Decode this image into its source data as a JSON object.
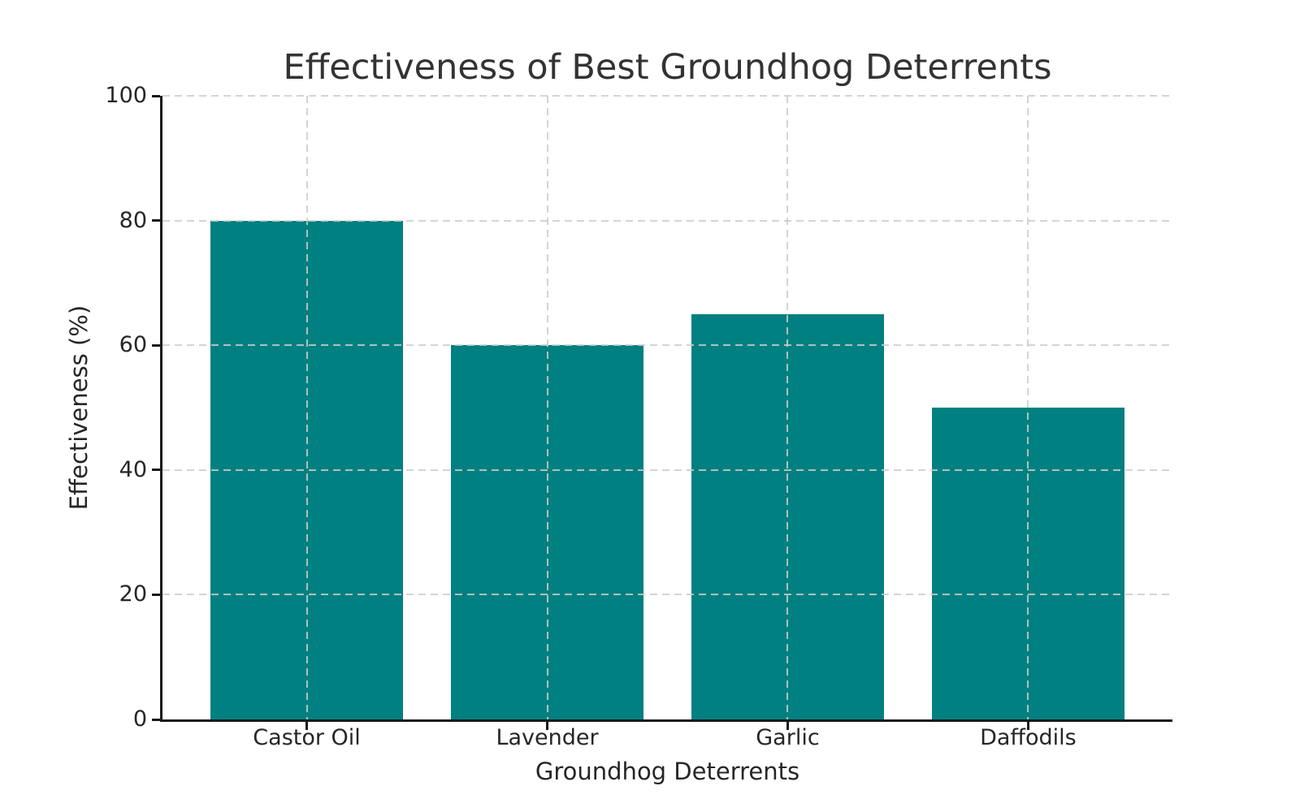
{
  "figure": {
    "background_color": "#ffffff"
  },
  "chart_data": {
    "type": "bar",
    "title": "Effectiveness of Best Groundhog Deterrents",
    "xlabel": "Groundhog Deterrents",
    "ylabel": "Effectiveness (%)",
    "categories": [
      "Castor Oil",
      "Lavender",
      "Garlic",
      "Daffodils"
    ],
    "values": [
      80,
      60,
      65,
      50
    ],
    "ylim": [
      0,
      100
    ],
    "yticks": [
      0,
      20,
      40,
      60,
      80,
      100
    ],
    "grid": {
      "visible": true,
      "style": "dashed",
      "axes": "both",
      "color": "#cccccc",
      "drawn_above_bars": true
    },
    "legend": {
      "visible": false
    },
    "bar_width_ratio": 0.8,
    "colors": {
      "bar": "#008080",
      "spine": "#1a1a1a",
      "tick_text": "#262626",
      "title_text": "#333333",
      "grid": "#cccccc"
    }
  }
}
